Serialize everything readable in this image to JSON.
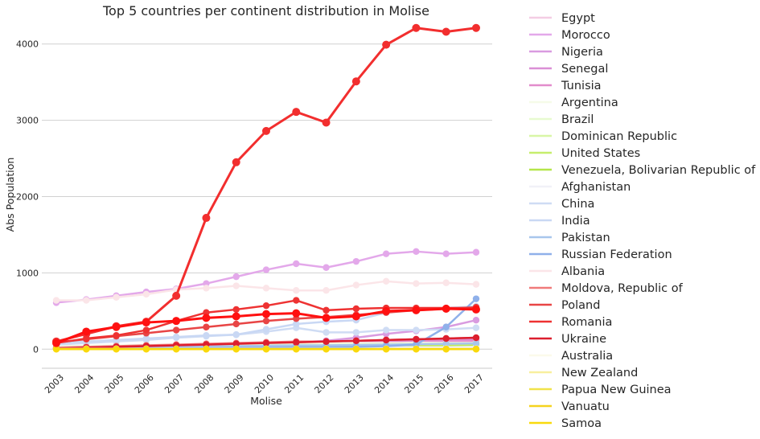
{
  "chart_data": {
    "type": "line",
    "title": "Top 5 countries per continent distribution in Molise",
    "xlabel": "Molise",
    "ylabel": "Abs Population",
    "categories": [
      "2003",
      "2004",
      "2005",
      "2006",
      "2007",
      "2008",
      "2009",
      "2010",
      "2011",
      "2012",
      "2013",
      "2014",
      "2015",
      "2016",
      "2017"
    ],
    "ylim": [
      -250,
      4450
    ],
    "yticks": [
      0,
      1000,
      2000,
      3000,
      4000
    ],
    "grid": "horizontal",
    "legend_position": "right",
    "series": [
      {
        "name": "Egypt",
        "color": "#f4cde4",
        "values": [
          20,
          25,
          30,
          35,
          40,
          45,
          50,
          55,
          60,
          65,
          70,
          75,
          80,
          85,
          90
        ]
      },
      {
        "name": "Morocco",
        "color": "#e3a8ea",
        "values": [
          610,
          650,
          700,
          750,
          790,
          860,
          950,
          1040,
          1120,
          1070,
          1150,
          1250,
          1280,
          1250,
          1270
        ]
      },
      {
        "name": "Nigeria",
        "color": "#d99be0",
        "values": [
          10,
          15,
          20,
          25,
          30,
          40,
          50,
          70,
          90,
          110,
          150,
          200,
          240,
          290,
          380
        ]
      },
      {
        "name": "Senegal",
        "color": "#da8fd6",
        "values": [
          15,
          20,
          30,
          40,
          50,
          60,
          70,
          80,
          90,
          100,
          110,
          110,
          120,
          120,
          130
        ]
      },
      {
        "name": "Tunisia",
        "color": "#e28ccc",
        "values": [
          20,
          25,
          30,
          40,
          50,
          60,
          70,
          80,
          90,
          90,
          100,
          100,
          110,
          110,
          110
        ]
      },
      {
        "name": "Argentina",
        "color": "#f6fbe8",
        "values": [
          40,
          45,
          50,
          55,
          60,
          65,
          70,
          75,
          80,
          80,
          80,
          80,
          80,
          80,
          80
        ]
      },
      {
        "name": "Brazil",
        "color": "#e8fad0",
        "values": [
          20,
          25,
          30,
          35,
          40,
          45,
          50,
          55,
          60,
          60,
          65,
          70,
          70,
          75,
          80
        ]
      },
      {
        "name": "Dominican Republic",
        "color": "#d8f6a6",
        "values": [
          5,
          8,
          10,
          15,
          20,
          25,
          30,
          35,
          40,
          40,
          45,
          50,
          55,
          60,
          65
        ]
      },
      {
        "name": "United States",
        "color": "#c6ee6c",
        "values": [
          10,
          12,
          15,
          18,
          20,
          25,
          30,
          35,
          40,
          40,
          40,
          45,
          45,
          50,
          50
        ]
      },
      {
        "name": "Venezuela, Bolivarian Republic of",
        "color": "#b5e64a",
        "values": [
          5,
          6,
          8,
          10,
          12,
          15,
          18,
          20,
          25,
          25,
          30,
          30,
          35,
          35,
          40
        ]
      },
      {
        "name": "Afghanistan",
        "color": "#f1f1f8",
        "values": [
          5,
          5,
          8,
          10,
          10,
          12,
          15,
          15,
          20,
          20,
          20,
          25,
          25,
          25,
          30
        ]
      },
      {
        "name": "China",
        "color": "#cfdcf4",
        "values": [
          60,
          80,
          100,
          120,
          150,
          170,
          190,
          230,
          280,
          220,
          220,
          250,
          250,
          260,
          280
        ]
      },
      {
        "name": "India",
        "color": "#c9d8f4",
        "values": [
          80,
          100,
          120,
          140,
          160,
          180,
          190,
          260,
          330,
          360,
          380,
          480,
          520,
          540,
          560
        ]
      },
      {
        "name": "Pakistan",
        "color": "#a8c6ec",
        "values": [
          10,
          15,
          20,
          25,
          30,
          35,
          40,
          45,
          50,
          50,
          55,
          60,
          65,
          70,
          75
        ]
      },
      {
        "name": "Russian Federation",
        "color": "#8fb0ea",
        "values": [
          5,
          6,
          8,
          10,
          12,
          15,
          18,
          20,
          25,
          25,
          30,
          40,
          60,
          290,
          660
        ]
      },
      {
        "name": "Albania",
        "color": "#fbe5e8",
        "values": [
          640,
          640,
          680,
          720,
          780,
          800,
          830,
          800,
          770,
          770,
          840,
          890,
          860,
          870,
          850
        ]
      },
      {
        "name": "Moldova, Republic of",
        "color": "#f07a7a",
        "values": [
          20,
          30,
          40,
          50,
          60,
          70,
          80,
          90,
          100,
          100,
          110,
          120,
          130,
          140,
          150
        ]
      },
      {
        "name": "Poland",
        "color": "#e84545",
        "values": [
          90,
          130,
          170,
          210,
          250,
          290,
          330,
          370,
          400,
          420,
          450,
          480,
          510,
          530,
          550
        ]
      },
      {
        "name": "Romania",
        "color": "#ee3232",
        "values": [
          80,
          140,
          180,
          250,
          370,
          480,
          520,
          570,
          640,
          510,
          530,
          540,
          540,
          540,
          540
        ]
      },
      {
        "name": "Ukraine",
        "color": "#dc1e2e",
        "values": [
          10,
          20,
          30,
          40,
          50,
          60,
          70,
          80,
          90,
          100,
          110,
          120,
          130,
          140,
          150
        ]
      },
      {
        "name": "Australia",
        "color": "#fbfaea",
        "values": [
          5,
          5,
          5,
          5,
          5,
          5,
          5,
          5,
          5,
          5,
          5,
          5,
          5,
          5,
          5
        ]
      },
      {
        "name": "New Zealand",
        "color": "#f8ef9e",
        "values": [
          3,
          3,
          3,
          3,
          3,
          3,
          3,
          3,
          3,
          3,
          3,
          3,
          3,
          3,
          3
        ]
      },
      {
        "name": "Papua New Guinea",
        "color": "#f1e34a",
        "values": [
          2,
          2,
          2,
          2,
          2,
          2,
          2,
          2,
          2,
          2,
          2,
          2,
          2,
          2,
          2
        ]
      },
      {
        "name": "Vanuatu",
        "color": "#f5d31e",
        "values": [
          1,
          1,
          1,
          1,
          1,
          1,
          1,
          1,
          1,
          1,
          1,
          1,
          1,
          1,
          1
        ]
      },
      {
        "name": "Samoa",
        "color": "#f9d90c",
        "values": [
          0,
          0,
          0,
          0,
          0,
          0,
          0,
          0,
          0,
          0,
          0,
          0,
          0,
          0,
          0
        ]
      }
    ],
    "highlight_series": [
      {
        "color": "#f22e2e",
        "values": [
          100,
          200,
          300,
          360,
          700,
          1720,
          2450,
          2860,
          3110,
          2970,
          3510,
          3990,
          4210,
          4160,
          4210
        ]
      },
      {
        "color": "#ff1010",
        "values": [
          80,
          230,
          290,
          350,
          370,
          410,
          430,
          460,
          470,
          410,
          430,
          500,
          510,
          530,
          520
        ]
      }
    ]
  }
}
